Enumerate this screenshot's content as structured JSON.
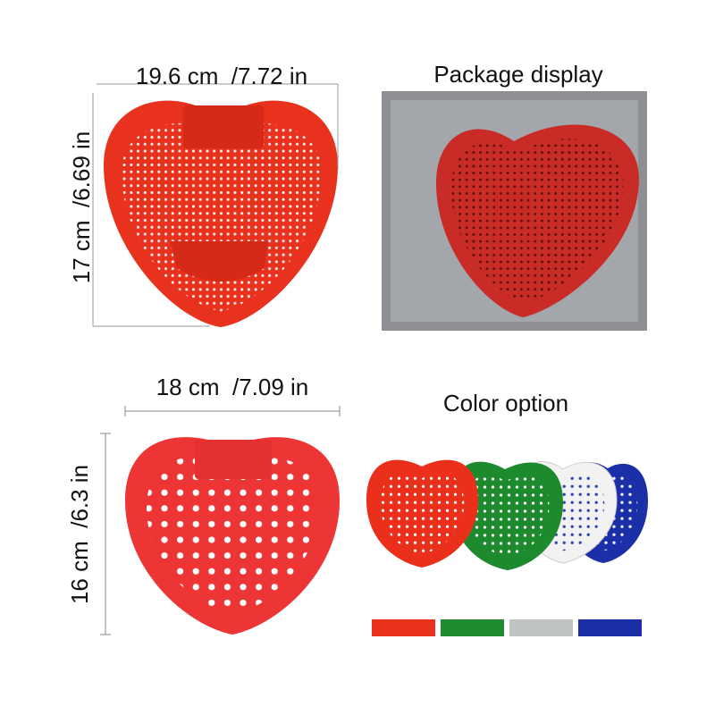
{
  "panels": [
    {
      "width_label": "19.6 cm  /7.72 in",
      "height_label": "17 cm  /6.69 in"
    },
    {
      "title": "Package display"
    },
    {
      "width_label": "18 cm  /7.09 in",
      "height_label": "16 cm  /6.3 in"
    },
    {
      "title": "Color option"
    }
  ]
}
